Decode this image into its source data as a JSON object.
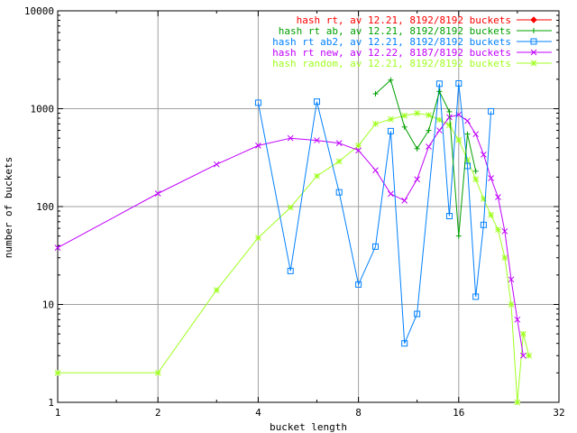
{
  "chart_data": {
    "type": "line",
    "title": "",
    "xlabel": "bucket length",
    "ylabel": "number of buckets",
    "xscale": "log2",
    "yscale": "log10",
    "xlim": [
      1,
      32
    ],
    "ylim": [
      1,
      10000
    ],
    "x_ticks": [
      1,
      2,
      4,
      8,
      16,
      32
    ],
    "x_tick_labels": [
      "1",
      "2",
      "4",
      "8",
      "16",
      "32"
    ],
    "y_ticks": [
      1,
      10,
      100,
      1000,
      10000
    ],
    "y_tick_labels": [
      "1",
      "10",
      "100",
      "1000",
      "10000"
    ],
    "grid": true,
    "legend_position": "top-right",
    "series": [
      {
        "name": "hash rt, av 12.21, 8192/8192 buckets",
        "color": "#ff0000",
        "marker": "diamond",
        "points": []
      },
      {
        "name": "hash rt ab, av 12.21, 8192/8192 buckets",
        "color": "#00a000",
        "marker": "plus",
        "points": [
          [
            9,
            1420
          ],
          [
            10,
            1960
          ],
          [
            11,
            650
          ],
          [
            12,
            390
          ],
          [
            13,
            600
          ],
          [
            14,
            1500
          ],
          [
            15,
            930
          ],
          [
            16,
            50
          ],
          [
            17,
            550
          ],
          [
            18,
            230
          ]
        ]
      },
      {
        "name": "hash rt ab2, av 12.21, 8192/8192 buckets",
        "color": "#0080ff",
        "marker": "square",
        "points": [
          [
            4,
            1150
          ],
          [
            5,
            22
          ],
          [
            6,
            1180
          ],
          [
            7,
            140
          ],
          [
            8,
            16
          ],
          [
            9,
            39
          ],
          [
            10,
            590
          ],
          [
            11,
            4
          ],
          [
            12,
            8
          ],
          [
            14,
            1800
          ],
          [
            15,
            80
          ],
          [
            16,
            1810
          ],
          [
            17,
            260
          ],
          [
            18,
            12
          ],
          [
            19,
            65
          ],
          [
            20,
            940
          ]
        ]
      },
      {
        "name": "hash rt new, av 12.22, 8187/8192 buckets",
        "color": "#c000ff",
        "marker": "x",
        "points": [
          [
            1,
            38
          ],
          [
            2,
            136
          ],
          [
            3,
            270
          ],
          [
            4,
            420
          ],
          [
            5,
            500
          ],
          [
            6,
            475
          ],
          [
            7,
            445
          ],
          [
            8,
            375
          ],
          [
            9,
            235
          ],
          [
            10,
            135
          ],
          [
            11,
            115
          ],
          [
            12,
            190
          ],
          [
            13,
            410
          ],
          [
            14,
            600
          ],
          [
            15,
            820
          ],
          [
            16,
            870
          ],
          [
            17,
            750
          ],
          [
            18,
            550
          ],
          [
            19,
            340
          ],
          [
            20,
            195
          ],
          [
            21,
            125
          ],
          [
            22,
            56
          ],
          [
            23,
            18
          ],
          [
            24,
            7
          ],
          [
            25,
            3
          ]
        ]
      },
      {
        "name": "hash random, av 12.21, 8192/8192 buckets",
        "color": "#a0ff20",
        "marker": "star",
        "points": [
          [
            1,
            2
          ],
          [
            2,
            2
          ],
          [
            3,
            14
          ],
          [
            4,
            48
          ],
          [
            5,
            98
          ],
          [
            6,
            205
          ],
          [
            7,
            290
          ],
          [
            8,
            420
          ],
          [
            9,
            700
          ],
          [
            10,
            780
          ],
          [
            11,
            850
          ],
          [
            12,
            900
          ],
          [
            13,
            860
          ],
          [
            14,
            770
          ],
          [
            15,
            680
          ],
          [
            16,
            480
          ],
          [
            17,
            300
          ],
          [
            18,
            190
          ],
          [
            19,
            120
          ],
          [
            20,
            82
          ],
          [
            21,
            58
          ],
          [
            22,
            30
          ],
          [
            23,
            10
          ],
          [
            24,
            1
          ],
          [
            25,
            5
          ],
          [
            26,
            3
          ]
        ]
      }
    ]
  }
}
